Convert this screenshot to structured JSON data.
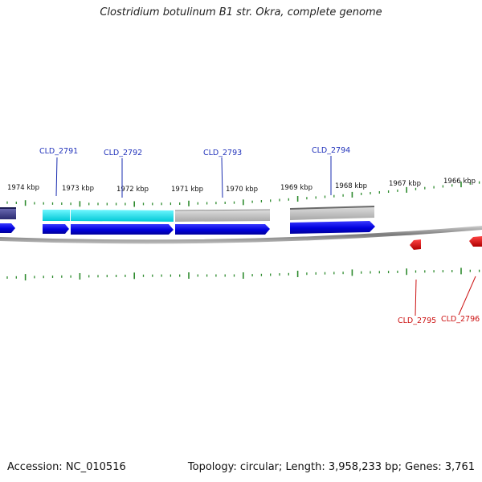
{
  "title": "Clostridium botulinum B1 str. Okra, complete genome",
  "footer": {
    "accession": "Accession: NC_010516",
    "topology": "Topology: circular; Length: 3,958,233 bp; Genes: 3,761"
  },
  "colors": {
    "background": "#ffffff",
    "tick": "#2e8b2e",
    "backbone": "#8c8c8c",
    "forward_gene": "#0000e0",
    "reverse_gene": "#e00000",
    "forward_label": "#2233bb",
    "reverse_label": "#cc1111",
    "cds_cyan": "#00e0ee",
    "cds_grey": "#c0c0c0",
    "cds_navy": "#3a3a8a"
  },
  "kbp_labels": [
    "1974 kbp",
    "1973 kbp",
    "1972 kbp",
    "1971 kbp",
    "1970 kbp",
    "1969 kbp",
    "1968 kbp",
    "1967 kbp",
    "1966 kbp"
  ],
  "forward_genes": [
    {
      "label": "CLD_2791",
      "color": "cyan"
    },
    {
      "label": "CLD_2792",
      "color": "cyan"
    },
    {
      "label": "CLD_2793",
      "color": "grey"
    },
    {
      "label": "CLD_2794",
      "color": "grey"
    }
  ],
  "reverse_genes": [
    {
      "label": "CLD_2795"
    },
    {
      "label": "CLD_2796"
    }
  ]
}
